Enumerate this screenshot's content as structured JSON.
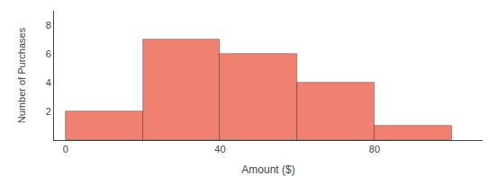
{
  "chart_data": {
    "type": "histogram",
    "bins": [
      0,
      20,
      40,
      60,
      80,
      100
    ],
    "values": [
      2,
      7,
      6,
      4,
      1
    ],
    "color": "#F08070",
    "xlabel": "Amount ($)",
    "ylabel": "Number of Purchases",
    "xlim": [
      -3,
      108
    ],
    "ylim": [
      0,
      9
    ],
    "xticks": [
      0,
      40,
      80
    ],
    "yticks": [
      2,
      4,
      6,
      8
    ],
    "grid": false
  }
}
